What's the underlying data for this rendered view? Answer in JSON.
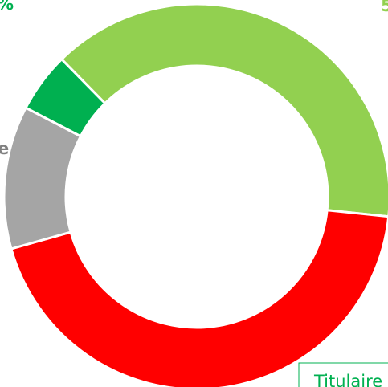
{
  "chart_data": {
    "type": "donut",
    "values": [
      39,
      44,
      12,
      5
    ],
    "colors": [
      "#92d050",
      "#ff0000",
      "#a5a5a5",
      "#00b050"
    ],
    "start_angle": 315.5,
    "annotations": [
      {
        "text": "%",
        "color": "#00b050"
      },
      {
        "text": "5",
        "color": "#92d050"
      },
      {
        "text": "e",
        "color": "#808080"
      },
      {
        "text": "Titulaire",
        "color": "#00b050"
      }
    ]
  }
}
